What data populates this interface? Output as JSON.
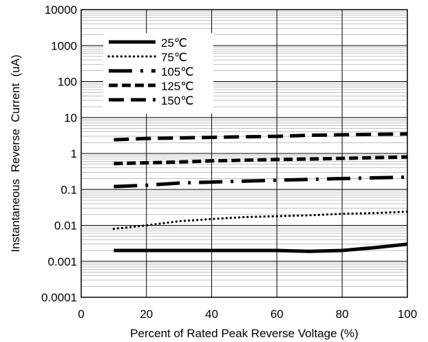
{
  "chart_data": {
    "type": "line",
    "xlabel": "Percent of Rated Peak Reverse Voltage (%)",
    "ylabel": "Instantaneous  Reverse  Current  (uA)",
    "xlim": [
      0,
      100
    ],
    "ylim": [
      0.0001,
      10000
    ],
    "yscale": "log",
    "x_ticks": [
      0,
      20,
      40,
      60,
      80,
      100
    ],
    "x_tick_labels": [
      "0",
      "20",
      "40",
      "60",
      "80",
      "100"
    ],
    "y_ticks": [
      0.0001,
      0.001,
      0.01,
      0.1,
      1,
      10,
      100,
      1000,
      10000
    ],
    "y_tick_labels": [
      "0.0001",
      "0.001",
      "0.01",
      "0.1",
      "1",
      "10",
      "100",
      "1000",
      "10000"
    ],
    "grid": true,
    "legend_position": "top-left",
    "series": [
      {
        "name": "25℃",
        "style": "solid",
        "x": [
          10,
          20,
          30,
          40,
          50,
          60,
          70,
          80,
          90,
          100
        ],
        "values": [
          0.002,
          0.002,
          0.002,
          0.002,
          0.002,
          0.002,
          0.0019,
          0.002,
          0.0024,
          0.003
        ]
      },
      {
        "name": "75℃",
        "style": "dotted",
        "x": [
          10,
          20,
          30,
          40,
          50,
          60,
          70,
          80,
          90,
          100
        ],
        "values": [
          0.008,
          0.01,
          0.013,
          0.015,
          0.017,
          0.018,
          0.019,
          0.021,
          0.022,
          0.024
        ]
      },
      {
        "name": "105℃",
        "style": "longdash-dot",
        "x": [
          10,
          20,
          30,
          40,
          50,
          60,
          70,
          80,
          90,
          100
        ],
        "values": [
          0.12,
          0.13,
          0.15,
          0.16,
          0.17,
          0.18,
          0.19,
          0.2,
          0.21,
          0.22
        ]
      },
      {
        "name": "125℃",
        "style": "dashed",
        "x": [
          10,
          20,
          30,
          40,
          50,
          60,
          70,
          80,
          90,
          100
        ],
        "values": [
          0.52,
          0.55,
          0.58,
          0.62,
          0.65,
          0.68,
          0.7,
          0.73,
          0.76,
          0.8
        ]
      },
      {
        "name": "150℃",
        "style": "longdash",
        "x": [
          10,
          20,
          30,
          40,
          50,
          60,
          70,
          80,
          90,
          100
        ],
        "values": [
          2.4,
          2.6,
          2.7,
          2.8,
          2.9,
          3.0,
          3.2,
          3.3,
          3.4,
          3.5
        ]
      }
    ]
  }
}
